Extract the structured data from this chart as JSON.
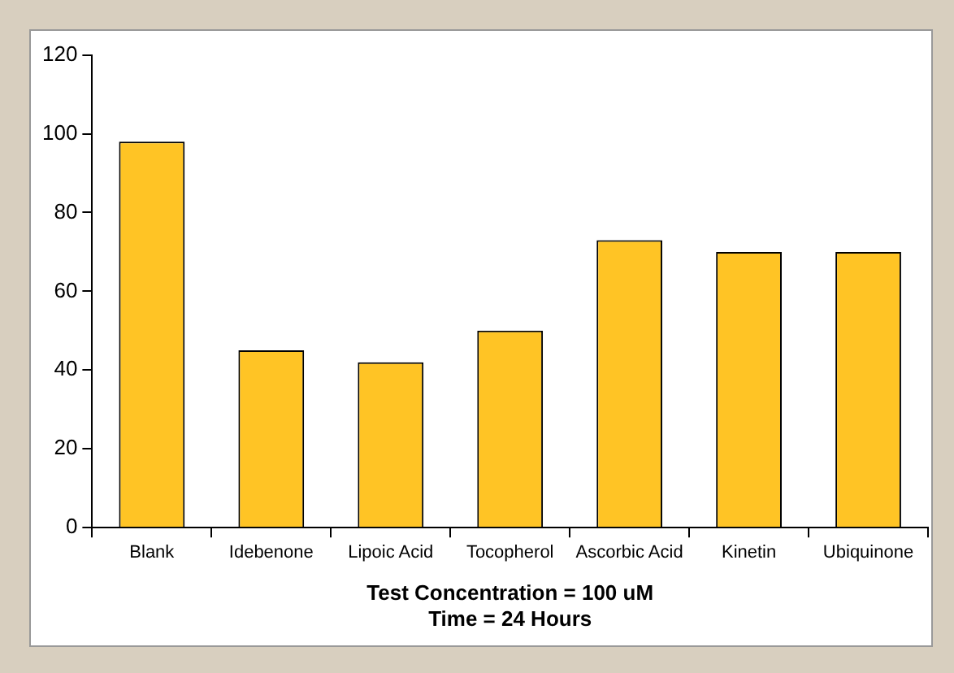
{
  "chart_data": {
    "type": "bar",
    "xlabel": "Test Concentration = 100 uM\nTime = 24 Hours",
    "categories": [
      "Blank",
      "Idebenone",
      "Lipoic Acid",
      "Tocopherol",
      "Ascorbic Acid",
      "Kinetin",
      "Ubiquinone"
    ],
    "values": [
      98,
      45,
      42,
      50,
      73,
      70,
      70
    ],
    "color": "#ffc425",
    "ylim": [
      0,
      120
    ],
    "yticks": [
      0,
      20,
      40,
      60,
      80,
      100,
      120
    ],
    "grid": false,
    "legend": false
  }
}
